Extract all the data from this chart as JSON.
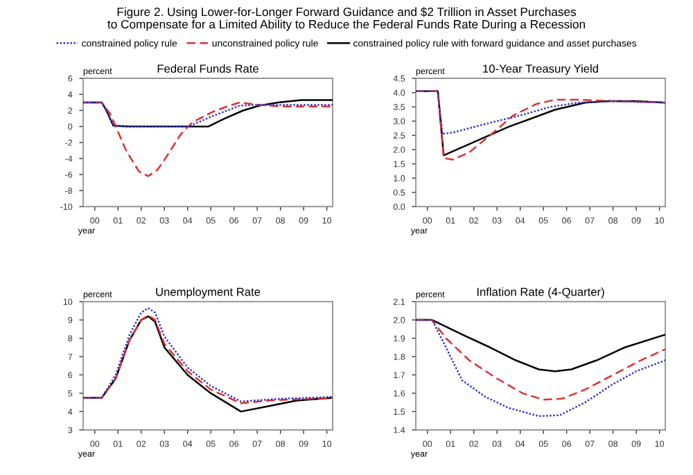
{
  "chart_data": [
    {
      "type": "line",
      "title": "Federal Funds Rate",
      "annotations": [
        "Figure 2. Using Lower-for-Longer Forward Guidance and $2 Trillion in Asset Purchases\nto Compensate for a Limited Ability to Reduce the Federal Funds Rate During a Recession"
      ],
      "xlabel": "year",
      "ylabel": "percent",
      "legend": "top",
      "xlim": [
        0,
        10.75
      ],
      "xticks": [
        {
          "value": 0.5,
          "label": "00"
        },
        {
          "value": 1.5,
          "label": "01"
        },
        {
          "value": 2.5,
          "label": "02"
        },
        {
          "value": 3.5,
          "label": "03"
        },
        {
          "value": 4.5,
          "label": "04"
        },
        {
          "value": 5.5,
          "label": "05"
        },
        {
          "value": 6.5,
          "label": "06"
        },
        {
          "value": 7.5,
          "label": "07"
        },
        {
          "value": 8.5,
          "label": "08"
        },
        {
          "value": 9.5,
          "label": "09"
        },
        {
          "value": 10.5,
          "label": "10"
        }
      ],
      "ylim": [
        -10,
        6
      ],
      "yticks": [
        -10,
        -8,
        -6,
        -4,
        -2,
        0,
        2,
        4,
        6
      ],
      "grid": false,
      "series": [
        {
          "name": "constrained policy rule",
          "color": "#3333cc",
          "line_style": "dotted",
          "x": [
            0,
            0.8,
            1.0,
            1.3,
            2.0,
            4.55,
            5.5,
            6.75,
            7.5,
            10.75
          ],
          "values": [
            3,
            3,
            2,
            0.1,
            0,
            0,
            1.2,
            2.6,
            2.7,
            2.7
          ]
        },
        {
          "name": "unconstrained policy rule",
          "color": "#e03030",
          "line_style": "dashed",
          "x": [
            0,
            0.8,
            1.18,
            1.85,
            2.4,
            2.8,
            3.2,
            3.54,
            4.2,
            4.7,
            5.56,
            6.2,
            6.75,
            7.6,
            8.5,
            10.75
          ],
          "values": [
            3,
            3,
            1.5,
            -3,
            -5.6,
            -6.2,
            -5.4,
            -4,
            -1,
            0.5,
            1.8,
            2.5,
            3,
            2.7,
            2.5,
            2.5
          ]
        },
        {
          "name": "constrained policy rule with forward guidance and asset purchases",
          "color": "#000000",
          "line_style": "solid",
          "x": [
            0,
            0.8,
            1.0,
            1.3,
            2.0,
            5.4,
            6.1,
            6.9,
            7.6,
            8.4,
            9.4,
            10.75
          ],
          "values": [
            3,
            3,
            2,
            0.1,
            0,
            0,
            1,
            2,
            2.6,
            3,
            3.3,
            3.3
          ]
        }
      ]
    },
    {
      "type": "line",
      "title": "10-Year Treasury Yield",
      "xlabel": "year",
      "ylabel": "percent",
      "xlim": [
        0,
        10.75
      ],
      "xticks": [
        {
          "value": 0.5,
          "label": "00"
        },
        {
          "value": 1.5,
          "label": "01"
        },
        {
          "value": 2.5,
          "label": "02"
        },
        {
          "value": 3.5,
          "label": "03"
        },
        {
          "value": 4.5,
          "label": "04"
        },
        {
          "value": 5.5,
          "label": "05"
        },
        {
          "value": 6.5,
          "label": "06"
        },
        {
          "value": 7.5,
          "label": "07"
        },
        {
          "value": 8.5,
          "label": "08"
        },
        {
          "value": 9.5,
          "label": "09"
        },
        {
          "value": 10.5,
          "label": "10"
        }
      ],
      "ylim": [
        0,
        4.5
      ],
      "yticks": [
        {
          "value": 0,
          "label": "0.0"
        },
        0.5,
        {
          "value": 1,
          "label": "1.0"
        },
        1.5,
        {
          "value": 2,
          "label": "2.0"
        },
        2.5,
        {
          "value": 3,
          "label": "3.0"
        },
        3.5,
        {
          "value": 4,
          "label": "4.0"
        },
        4.5
      ],
      "grid": false,
      "series": [
        {
          "color": "#3333cc",
          "line_style": "dotted",
          "x": [
            0,
            0.95,
            1.15,
            1.6,
            3.0,
            4.5,
            5.8,
            7.0,
            8.5,
            10.75
          ],
          "values": [
            4.05,
            4.05,
            2.55,
            2.6,
            2.9,
            3.2,
            3.5,
            3.65,
            3.7,
            3.65
          ]
        },
        {
          "color": "#e03030",
          "line_style": "dashed",
          "x": [
            0,
            0.95,
            1.2,
            1.6,
            2.3,
            3.2,
            4.2,
            5.2,
            6.0,
            7.0,
            8.5,
            10.75
          ],
          "values": [
            4.05,
            4.05,
            1.7,
            1.65,
            1.9,
            2.5,
            3.2,
            3.6,
            3.75,
            3.75,
            3.7,
            3.65
          ]
        },
        {
          "color": "#000000",
          "line_style": "solid",
          "x": [
            0,
            0.95,
            1.2,
            4.0,
            6.0,
            7.3,
            8.3,
            9.5,
            10.75
          ],
          "values": [
            4.05,
            4.05,
            1.8,
            2.8,
            3.4,
            3.65,
            3.7,
            3.7,
            3.65
          ]
        }
      ]
    },
    {
      "type": "line",
      "title": "Unemployment Rate",
      "xlabel": "year",
      "ylabel": "percent",
      "xlim": [
        0,
        10.75
      ],
      "xticks": [
        {
          "value": 0.5,
          "label": "00"
        },
        {
          "value": 1.5,
          "label": "01"
        },
        {
          "value": 2.5,
          "label": "02"
        },
        {
          "value": 3.5,
          "label": "03"
        },
        {
          "value": 4.5,
          "label": "04"
        },
        {
          "value": 5.5,
          "label": "05"
        },
        {
          "value": 6.5,
          "label": "06"
        },
        {
          "value": 7.5,
          "label": "07"
        },
        {
          "value": 8.5,
          "label": "08"
        },
        {
          "value": 9.5,
          "label": "09"
        },
        {
          "value": 10.5,
          "label": "10"
        }
      ],
      "ylim": [
        3,
        10
      ],
      "yticks": [
        3,
        4,
        5,
        6,
        7,
        8,
        9,
        10
      ],
      "grid": false,
      "series": [
        {
          "color": "#3333cc",
          "line_style": "dotted",
          "x": [
            0,
            0.8,
            1.4,
            2.0,
            2.5,
            2.8,
            3.1,
            3.5,
            4.5,
            5.5,
            6.8,
            8.5,
            10.75
          ],
          "values": [
            4.75,
            4.75,
            6.0,
            8.2,
            9.4,
            9.65,
            9.4,
            8.1,
            6.4,
            5.4,
            4.55,
            4.7,
            4.8
          ]
        },
        {
          "color": "#e03030",
          "line_style": "dashed",
          "x": [
            0,
            0.8,
            1.4,
            2.0,
            2.5,
            2.8,
            3.1,
            3.5,
            4.5,
            5.5,
            6.8,
            8.0,
            10.75
          ],
          "values": [
            4.75,
            4.75,
            5.8,
            7.9,
            9.0,
            9.25,
            9.0,
            7.7,
            6.2,
            5.2,
            4.45,
            4.6,
            4.75
          ]
        },
        {
          "color": "#000000",
          "line_style": "solid",
          "x": [
            0,
            0.8,
            1.4,
            2.0,
            2.5,
            2.8,
            3.1,
            3.5,
            4.5,
            5.5,
            6.8,
            8.0,
            9.2,
            10.75
          ],
          "values": [
            4.75,
            4.75,
            5.8,
            7.9,
            9.0,
            9.2,
            8.9,
            7.5,
            6.0,
            5.0,
            4.0,
            4.3,
            4.6,
            4.75
          ]
        }
      ]
    },
    {
      "type": "line",
      "title": "Inflation Rate (4-Quarter)",
      "xlabel": "year",
      "ylabel": "percent",
      "xlim": [
        0,
        10.75
      ],
      "xticks": [
        {
          "value": 0.5,
          "label": "00"
        },
        {
          "value": 1.5,
          "label": "01"
        },
        {
          "value": 2.5,
          "label": "02"
        },
        {
          "value": 3.5,
          "label": "03"
        },
        {
          "value": 4.5,
          "label": "04"
        },
        {
          "value": 5.5,
          "label": "05"
        },
        {
          "value": 6.5,
          "label": "06"
        },
        {
          "value": 7.5,
          "label": "07"
        },
        {
          "value": 8.5,
          "label": "08"
        },
        {
          "value": 9.5,
          "label": "09"
        },
        {
          "value": 10.5,
          "label": "10"
        }
      ],
      "ylim": [
        1.4,
        2.1
      ],
      "yticks": [
        1.4,
        1.5,
        1.6,
        1.7,
        1.8,
        1.9,
        {
          "value": 2,
          "label": "2.0"
        },
        2.1
      ],
      "grid": false,
      "series": [
        {
          "color": "#3333cc",
          "line_style": "dotted",
          "x": [
            0,
            0.7,
            1.3,
            2.0,
            3.0,
            4.0,
            5.3,
            6.2,
            7.3,
            8.5,
            9.5,
            10.75
          ],
          "values": [
            2.0,
            2.0,
            1.85,
            1.67,
            1.58,
            1.52,
            1.475,
            1.48,
            1.55,
            1.65,
            1.72,
            1.78
          ]
        },
        {
          "color": "#e03030",
          "line_style": "dashed",
          "x": [
            0,
            0.7,
            1.3,
            2.3,
            3.5,
            4.6,
            5.5,
            6.3,
            7.3,
            8.5,
            9.7,
            10.75
          ],
          "values": [
            2.0,
            2.0,
            1.9,
            1.78,
            1.68,
            1.6,
            1.565,
            1.57,
            1.62,
            1.7,
            1.78,
            1.84
          ]
        },
        {
          "color": "#000000",
          "line_style": "solid",
          "x": [
            0,
            0.7,
            2.0,
            3.2,
            4.3,
            5.3,
            6.0,
            6.7,
            7.8,
            9.0,
            10.75
          ],
          "values": [
            2.0,
            2.0,
            1.92,
            1.85,
            1.78,
            1.73,
            1.72,
            1.73,
            1.78,
            1.85,
            1.92
          ]
        }
      ]
    }
  ]
}
